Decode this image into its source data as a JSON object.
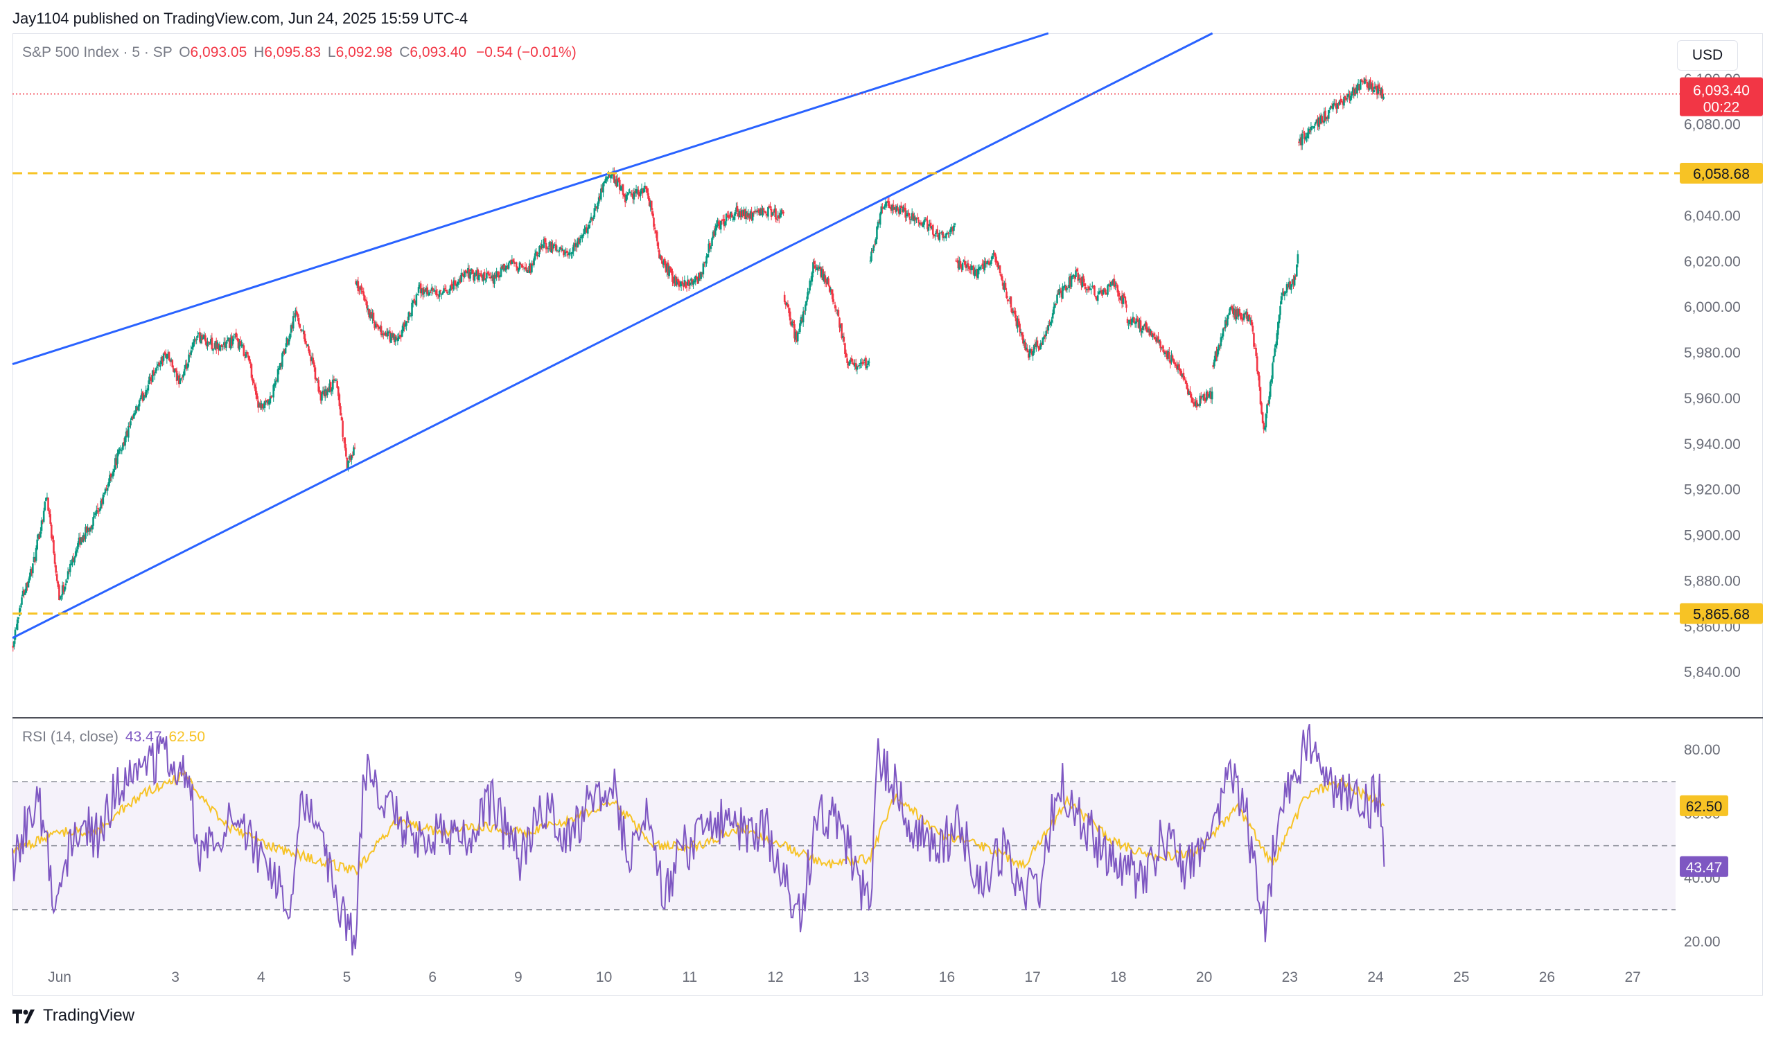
{
  "header": {
    "publisher_line": "Jay1104 published on TradingView.com, Jun 24, 2025 15:59 UTC-4"
  },
  "legend": {
    "symbol": "S&P 500 Index · 5 · SP",
    "open_key": "O",
    "open": "6,093.05",
    "high_key": "H",
    "high": "6,095.83",
    "low_key": "L",
    "low": "6,092.98",
    "close_key": "C",
    "close": "6,093.40",
    "change": "−0.54 (−0.01%)"
  },
  "currency": "USD",
  "rsi_legend": {
    "label": "RSI (14, close)",
    "rsi_value": "43.47",
    "ma_value": "62.50"
  },
  "footer": {
    "brand": "TradingView"
  },
  "colors": {
    "up": "#089981",
    "down": "#f23645",
    "trendline": "#2962ff",
    "level": "#f7c325",
    "rsi": "#7e57c2",
    "rsi_ma": "#f7c325",
    "rsi_band": "#7e57c2"
  },
  "chart_data": [
    {
      "type": "candlestick",
      "title": "S&P 500 Index · 5 · SP",
      "y_unit": "USD",
      "ylim": [
        5820,
        6120
      ],
      "y_ticks": [
        5840,
        5860,
        5880,
        5900,
        5920,
        5940,
        5960,
        5980,
        6000,
        6020,
        6040,
        6080,
        6100
      ],
      "y_tick_labels": [
        "5,840.00",
        "5,860.00",
        "5,880.00",
        "5,900.00",
        "5,920.00",
        "5,940.00",
        "5,960.00",
        "5,980.00",
        "6,000.00",
        "6,020.00",
        "6,040.00",
        "6,080.00",
        "6,100.00"
      ],
      "x_tick_labels": [
        "Jun",
        "3",
        "4",
        "5",
        "6",
        "9",
        "10",
        "11",
        "12",
        "13",
        "16",
        "17",
        "18",
        "20",
        "23",
        "24",
        "25",
        "26",
        "27"
      ],
      "xlim": [
        0,
        19.4
      ],
      "sessions": [
        "Jun 2",
        "Jun 3",
        "Jun 4",
        "Jun 5",
        "Jun 6",
        "Jun 9",
        "Jun 10",
        "Jun 11",
        "Jun 12",
        "Jun 13",
        "Jun 16",
        "Jun 17",
        "Jun 18",
        "Jun 20",
        "Jun 23",
        "Jun 24"
      ],
      "session_path": [
        [
          [
            0.0,
            5852
          ],
          [
            0.1,
            5872
          ],
          [
            0.25,
            5888
          ],
          [
            0.4,
            5918
          ],
          [
            0.55,
            5872
          ],
          [
            0.75,
            5895
          ],
          [
            1.0,
            5910
          ]
        ],
        [
          [
            1.0,
            5910
          ],
          [
            1.2,
            5932
          ],
          [
            1.45,
            5955
          ],
          [
            1.65,
            5972
          ],
          [
            1.8,
            5980
          ],
          [
            1.92,
            5968
          ],
          [
            2.0,
            5970
          ]
        ],
        [
          [
            2.0,
            5970
          ],
          [
            2.15,
            5988
          ],
          [
            2.4,
            5982
          ],
          [
            2.6,
            5986
          ],
          [
            2.75,
            5978
          ],
          [
            2.88,
            5955
          ],
          [
            3.0,
            5958
          ]
        ],
        [
          [
            3.0,
            5958
          ],
          [
            3.15,
            5978
          ],
          [
            3.3,
            5998
          ],
          [
            3.45,
            5982
          ],
          [
            3.6,
            5960
          ],
          [
            3.78,
            5968
          ],
          [
            3.9,
            5930
          ],
          [
            4.0,
            5938
          ]
        ],
        [
          [
            4.0,
            6012
          ],
          [
            4.25,
            5990
          ],
          [
            4.5,
            5985
          ],
          [
            4.75,
            6008
          ],
          [
            5.0,
            6005
          ]
        ],
        [
          [
            5.0,
            6005
          ],
          [
            5.3,
            6015
          ],
          [
            5.6,
            6012
          ],
          [
            5.85,
            6020
          ],
          [
            6.0,
            6015
          ]
        ],
        [
          [
            6.0,
            6015
          ],
          [
            6.2,
            6028
          ],
          [
            6.5,
            6022
          ],
          [
            6.75,
            6038
          ],
          [
            6.9,
            6055
          ],
          [
            7.0,
            6058
          ]
        ],
        [
          [
            7.0,
            6058
          ],
          [
            7.15,
            6048
          ],
          [
            7.4,
            6052
          ],
          [
            7.55,
            6022
          ],
          [
            7.75,
            6010
          ],
          [
            8.0,
            6012
          ]
        ],
        [
          [
            8.0,
            6012
          ],
          [
            8.2,
            6035
          ],
          [
            8.45,
            6042
          ],
          [
            8.65,
            6040
          ],
          [
            8.8,
            6042
          ],
          [
            9.0,
            6040
          ]
        ],
        [
          [
            9.0,
            6005
          ],
          [
            9.15,
            5985
          ],
          [
            9.35,
            6020
          ],
          [
            9.55,
            6008
          ],
          [
            9.75,
            5975
          ],
          [
            10.0,
            5975
          ]
        ],
        [
          [
            10.0,
            6020
          ],
          [
            10.15,
            6045
          ],
          [
            10.4,
            6042
          ],
          [
            10.6,
            6038
          ],
          [
            10.8,
            6032
          ],
          [
            11.0,
            6035
          ]
        ],
        [
          [
            11.0,
            6020
          ],
          [
            11.25,
            6015
          ],
          [
            11.45,
            6022
          ],
          [
            11.65,
            6000
          ],
          [
            11.85,
            5980
          ],
          [
            12.0,
            5984
          ]
        ],
        [
          [
            12.0,
            5984
          ],
          [
            12.2,
            6005
          ],
          [
            12.4,
            6014
          ],
          [
            12.65,
            6005
          ],
          [
            12.85,
            6010
          ],
          [
            13.0,
            6000
          ]
        ],
        [
          [
            13.0,
            5995
          ],
          [
            13.25,
            5990
          ],
          [
            13.55,
            5975
          ],
          [
            13.8,
            5958
          ],
          [
            14.0,
            5962
          ]
        ],
        [
          [
            14.0,
            5975
          ],
          [
            14.2,
            5998
          ],
          [
            14.45,
            5995
          ],
          [
            14.6,
            5945
          ],
          [
            14.8,
            6005
          ],
          [
            14.95,
            6012
          ],
          [
            15.0,
            6022
          ]
        ],
        [
          [
            15.0,
            6072
          ],
          [
            15.2,
            6080
          ],
          [
            15.5,
            6090
          ],
          [
            15.75,
            6098
          ],
          [
            15.95,
            6095
          ],
          [
            16.0,
            6093
          ]
        ]
      ],
      "last_price": 6093.4,
      "last_price_label": "6,093.40",
      "countdown": "00:22",
      "horizontal_levels": [
        {
          "value": 6058.68,
          "label": "6,058.68"
        },
        {
          "value": 5865.68,
          "label": "5,865.68"
        }
      ],
      "trendlines": [
        {
          "name": "upper",
          "points": [
            [
              0.0,
              5975
            ],
            [
              7.0,
              6059
            ]
          ]
        },
        {
          "name": "lower",
          "points": [
            [
              0.0,
              5855
            ],
            [
              10.3,
              6050
            ]
          ]
        }
      ]
    },
    {
      "type": "line",
      "title": "RSI (14, close)",
      "ylim": [
        12,
        90
      ],
      "y_ticks": [
        20,
        40,
        60,
        80
      ],
      "y_tick_labels": [
        "20.00",
        "40.00",
        "60.00",
        "80.00"
      ],
      "band": [
        30,
        70
      ],
      "midline": 50,
      "series": [
        {
          "name": "RSI",
          "key": "rsi",
          "last": 43.47
        },
        {
          "name": "MA",
          "key": "ma",
          "last": 62.5
        }
      ],
      "rsi_points": [
        [
          0.0,
          45
        ],
        [
          0.3,
          66
        ],
        [
          0.5,
          32
        ],
        [
          0.8,
          60
        ],
        [
          1.0,
          52
        ],
        [
          1.2,
          68
        ],
        [
          1.5,
          74
        ],
        [
          1.8,
          78
        ],
        [
          2.0,
          76
        ],
        [
          2.2,
          48
        ],
        [
          2.5,
          58
        ],
        [
          2.8,
          50
        ],
        [
          3.0,
          46
        ],
        [
          3.2,
          28
        ],
        [
          3.4,
          66
        ],
        [
          3.6,
          50
        ],
        [
          3.8,
          30
        ],
        [
          4.0,
          22
        ],
        [
          4.1,
          75
        ],
        [
          4.4,
          60
        ],
        [
          4.7,
          52
        ],
        [
          5.0,
          56
        ],
        [
          5.3,
          50
        ],
        [
          5.6,
          64
        ],
        [
          5.9,
          46
        ],
        [
          6.2,
          62
        ],
        [
          6.5,
          52
        ],
        [
          6.8,
          66
        ],
        [
          7.0,
          72
        ],
        [
          7.2,
          44
        ],
        [
          7.4,
          58
        ],
        [
          7.6,
          34
        ],
        [
          7.8,
          48
        ],
        [
          8.0,
          52
        ],
        [
          8.2,
          58
        ],
        [
          8.5,
          55
        ],
        [
          8.8,
          54
        ],
        [
          9.0,
          40
        ],
        [
          9.2,
          28
        ],
        [
          9.4,
          64
        ],
        [
          9.7,
          52
        ],
        [
          10.0,
          30
        ],
        [
          10.1,
          78
        ],
        [
          10.4,
          62
        ],
        [
          10.6,
          52
        ],
        [
          10.8,
          46
        ],
        [
          11.0,
          58
        ],
        [
          11.3,
          40
        ],
        [
          11.6,
          50
        ],
        [
          11.8,
          34
        ],
        [
          12.0,
          38
        ],
        [
          12.2,
          72
        ],
        [
          12.4,
          62
        ],
        [
          12.7,
          48
        ],
        [
          13.0,
          44
        ],
        [
          13.2,
          36
        ],
        [
          13.4,
          54
        ],
        [
          13.7,
          42
        ],
        [
          14.0,
          52
        ],
        [
          14.2,
          76
        ],
        [
          14.4,
          58
        ],
        [
          14.6,
          24
        ],
        [
          14.8,
          66
        ],
        [
          15.0,
          74
        ],
        [
          15.1,
          84
        ],
        [
          15.3,
          70
        ],
        [
          15.6,
          68
        ],
        [
          15.8,
          62
        ],
        [
          15.95,
          66
        ],
        [
          16.0,
          43.47
        ]
      ],
      "ma_points": [
        [
          0.0,
          48
        ],
        [
          0.5,
          54
        ],
        [
          1.0,
          55
        ],
        [
          1.5,
          66
        ],
        [
          2.0,
          72
        ],
        [
          2.5,
          56
        ],
        [
          3.0,
          50
        ],
        [
          3.5,
          46
        ],
        [
          4.0,
          42
        ],
        [
          4.5,
          58
        ],
        [
          5.0,
          54
        ],
        [
          5.5,
          56
        ],
        [
          6.0,
          54
        ],
        [
          6.5,
          58
        ],
        [
          7.0,
          64
        ],
        [
          7.5,
          50
        ],
        [
          8.0,
          50
        ],
        [
          8.5,
          56
        ],
        [
          9.0,
          50
        ],
        [
          9.5,
          44
        ],
        [
          10.0,
          46
        ],
        [
          10.3,
          66
        ],
        [
          10.8,
          54
        ],
        [
          11.3,
          50
        ],
        [
          11.8,
          44
        ],
        [
          12.3,
          64
        ],
        [
          12.8,
          52
        ],
        [
          13.3,
          46
        ],
        [
          13.8,
          48
        ],
        [
          14.3,
          62
        ],
        [
          14.7,
          44
        ],
        [
          15.1,
          66
        ],
        [
          15.5,
          70
        ],
        [
          16.0,
          62.5
        ]
      ]
    }
  ]
}
